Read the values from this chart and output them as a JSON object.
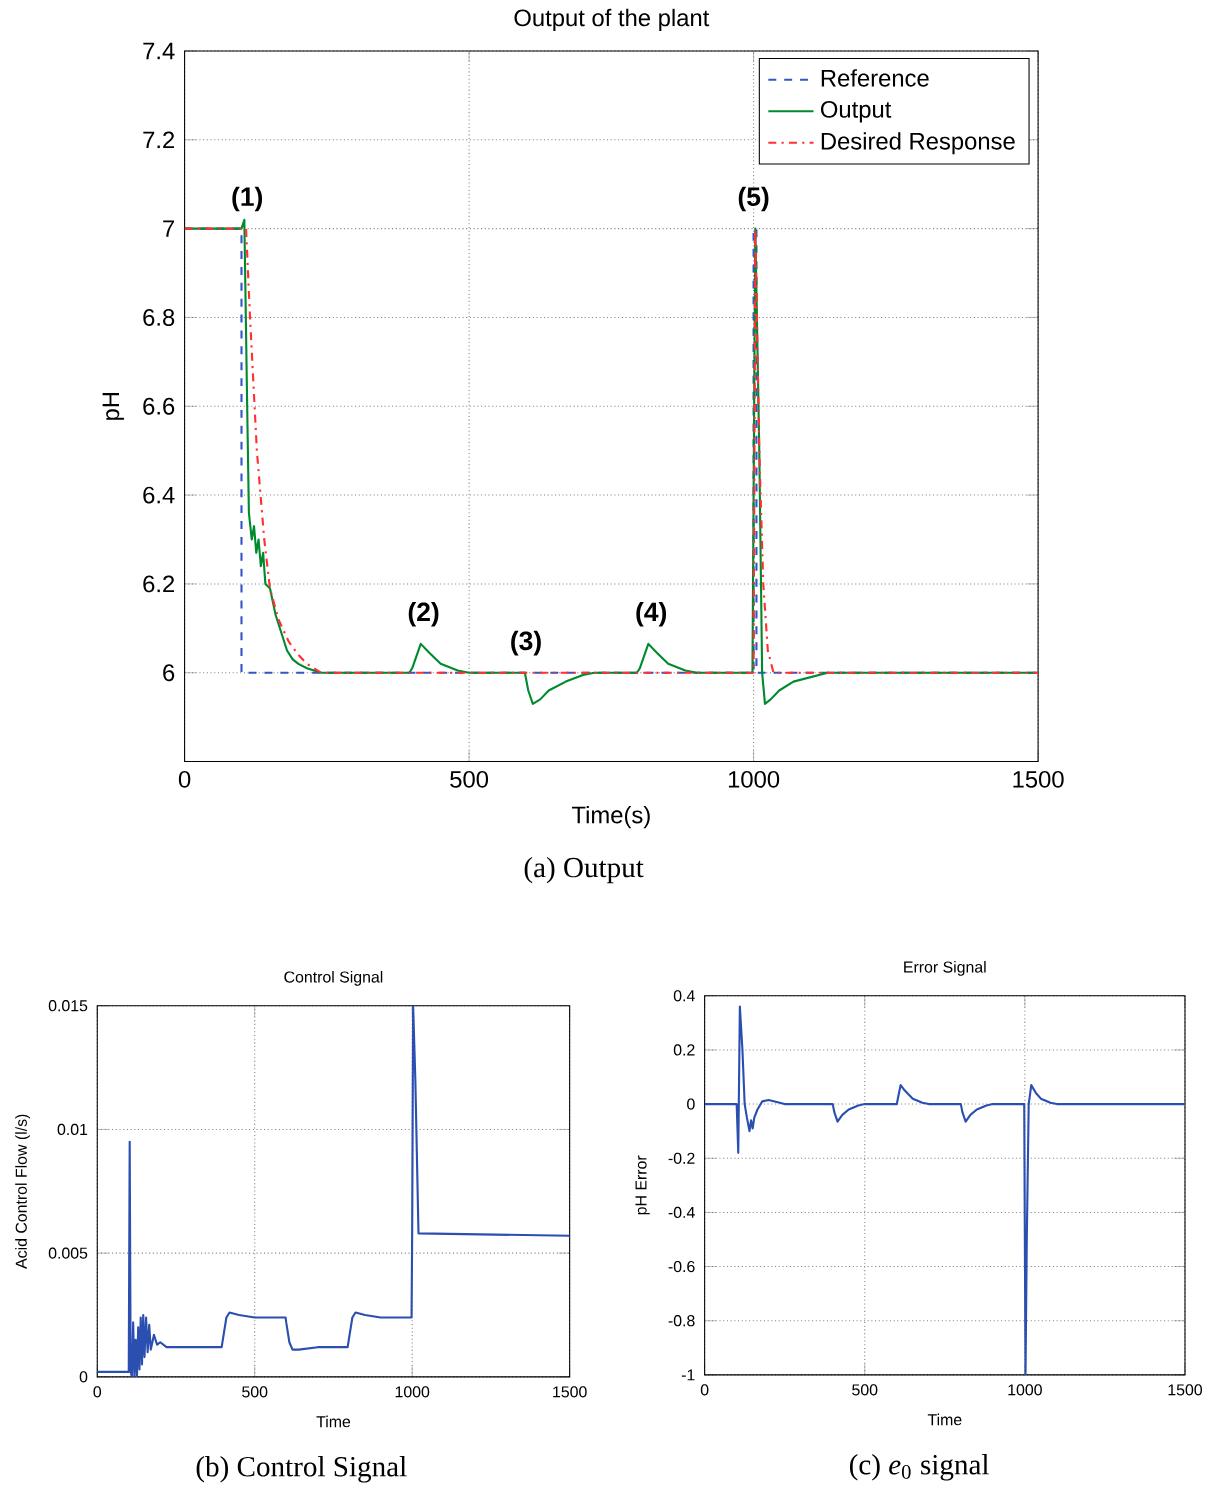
{
  "chart_data": [
    {
      "type": "line",
      "title": "Output of the plant",
      "xlabel": "Time(s)",
      "ylabel": "pH",
      "xlim": [
        0,
        1500
      ],
      "ylim": [
        5.8,
        7.4
      ],
      "xticks": [
        0,
        500,
        1000,
        1500
      ],
      "yticks": [
        {
          "value": 6,
          "label": "6"
        },
        6.2,
        6.4,
        6.6,
        6.8,
        {
          "value": 7,
          "label": "7"
        },
        7.2,
        7.4
      ],
      "grid": true,
      "legend": "top right",
      "series": [
        {
          "name": "Reference",
          "color": "#3355cc",
          "line_style": "dashed",
          "x": [
            0,
            100,
            100,
            1000,
            1000,
            1005,
            1005,
            1500
          ],
          "values": [
            7,
            7,
            6,
            6,
            7,
            7,
            6,
            6
          ]
        },
        {
          "name": "Output",
          "color": "#008a2e",
          "line_style": "solid",
          "x": [
            0,
            100,
            105,
            110,
            113,
            118,
            122,
            126,
            130,
            134,
            138,
            142,
            150,
            160,
            170,
            180,
            190,
            200,
            215,
            240,
            395,
            400,
            415,
            430,
            450,
            480,
            500,
            598,
            604,
            612,
            625,
            640,
            670,
            700,
            720,
            795,
            800,
            815,
            830,
            850,
            880,
            900,
            998,
            1003,
            1010,
            1015,
            1020,
            1030,
            1045,
            1070,
            1100,
            1130,
            1500
          ],
          "values": [
            7,
            7,
            7.02,
            6.6,
            6.36,
            6.3,
            6.33,
            6.27,
            6.3,
            6.24,
            6.27,
            6.2,
            6.19,
            6.13,
            6.09,
            6.05,
            6.03,
            6.02,
            6.01,
            6.0,
            6.0,
            6.01,
            6.065,
            6.045,
            6.02,
            6.005,
            6.0,
            6.0,
            5.96,
            5.93,
            5.94,
            5.96,
            5.98,
            5.995,
            6.0,
            6.0,
            6.01,
            6.065,
            6.045,
            6.02,
            6.005,
            6.0,
            6.0,
            7.0,
            6.5,
            6.0,
            5.93,
            5.94,
            5.96,
            5.98,
            5.99,
            6.0,
            6.0
          ]
        },
        {
          "name": "Desired Response",
          "color": "#ff3030",
          "line_style": "dashdot",
          "x": [
            0,
            100,
            108,
            115,
            127,
            140,
            150,
            165,
            183,
            200,
            215,
            240,
            1000,
            1003,
            1010,
            1017,
            1025,
            1035,
            1500
          ],
          "values": [
            7,
            7,
            7.0,
            6.8,
            6.5,
            6.3,
            6.19,
            6.12,
            6.07,
            6.04,
            6.02,
            6.0,
            6.0,
            7.0,
            6.5,
            6.2,
            6.05,
            6.0,
            6.0
          ]
        }
      ],
      "annotations": [
        "(a) Output",
        {
          "text": "(1)",
          "x": 110,
          "y": 7.0
        },
        {
          "text": "(2)",
          "x": 420,
          "y": 6.065
        },
        {
          "text": "(3)",
          "x": 600,
          "y": 6.0
        },
        {
          "text": "(4)",
          "x": 820,
          "y": 6.065
        },
        {
          "text": "(5)",
          "x": 1000,
          "y": 7.0
        }
      ]
    },
    {
      "type": "line",
      "title": "Control Signal",
      "xlabel": "Time",
      "ylabel": "Acid Control Flow (l/s)",
      "xlim": [
        0,
        1500
      ],
      "ylim": [
        0,
        0.015
      ],
      "xticks": [
        0,
        500,
        1000,
        1500
      ],
      "yticks": [
        0,
        0.005,
        0.01,
        0.015
      ],
      "grid": true,
      "series": [
        {
          "color": "#2b4fb0",
          "x": [
            0,
            100,
            103,
            106,
            110,
            114,
            118,
            122,
            126,
            130,
            134,
            138,
            142,
            146,
            150,
            155,
            160,
            165,
            170,
            180,
            190,
            200,
            220,
            250,
            300,
            395,
            400,
            410,
            420,
            450,
            500,
            598,
            600,
            610,
            620,
            640,
            700,
            795,
            800,
            810,
            820,
            850,
            900,
            998,
            1000,
            1003,
            1010,
            1020,
            1500
          ],
          "values": [
            0.0002,
            0.0002,
            0.0095,
            0.0002,
            0,
            0.0022,
            0,
            0.0015,
            0,
            0.002,
            0.0003,
            0.0024,
            0.0005,
            0.0025,
            0.0008,
            0.0024,
            0.001,
            0.0021,
            0.0011,
            0.0017,
            0.0013,
            0.0014,
            0.0012,
            0.0012,
            0.0012,
            0.0012,
            0.0016,
            0.0024,
            0.0026,
            0.0025,
            0.0024,
            0.0024,
            0.0022,
            0.0014,
            0.0011,
            0.0011,
            0.0012,
            0.0012,
            0.0016,
            0.0024,
            0.0026,
            0.0025,
            0.0024,
            0.0024,
            0.006,
            0.015,
            0.012,
            0.0058,
            0.0057
          ]
        }
      ],
      "annotations": [
        "(b) Control Signal"
      ]
    },
    {
      "type": "line",
      "title": "Error Signal",
      "xlabel": "Time",
      "ylabel": "pH Error",
      "xlim": [
        0,
        1500
      ],
      "ylim": [
        -1,
        0.4
      ],
      "xticks": [
        0,
        500,
        1000,
        1500
      ],
      "yticks": [
        -1,
        -0.8,
        -0.6,
        -0.4,
        -0.2,
        0,
        0.2,
        0.4
      ],
      "grid": true,
      "series": [
        {
          "color": "#2b4fb0",
          "x": [
            0,
            100,
            105,
            110,
            118,
            125,
            132,
            140,
            145,
            150,
            155,
            165,
            180,
            200,
            250,
            400,
            405,
            415,
            430,
            450,
            480,
            500,
            600,
            605,
            612,
            625,
            650,
            680,
            700,
            800,
            805,
            815,
            830,
            850,
            880,
            900,
            998,
            1002,
            1006,
            1012,
            1020,
            1035,
            1050,
            1080,
            1100,
            1500
          ],
          "values": [
            0,
            0,
            -0.18,
            0.36,
            0.2,
            0,
            -0.05,
            -0.1,
            -0.06,
            -0.09,
            -0.05,
            -0.02,
            0.01,
            0.015,
            0,
            0,
            -0.03,
            -0.065,
            -0.04,
            -0.02,
            -0.005,
            0,
            0,
            0.03,
            0.07,
            0.05,
            0.02,
            0.005,
            0,
            0,
            -0.03,
            -0.065,
            -0.04,
            -0.02,
            -0.005,
            0,
            0,
            -1,
            -0.5,
            0,
            0.07,
            0.04,
            0.02,
            0.005,
            0,
            0
          ]
        }
      ],
      "annotations": [
        "(c) *e*$_{0}$ signal"
      ]
    }
  ]
}
